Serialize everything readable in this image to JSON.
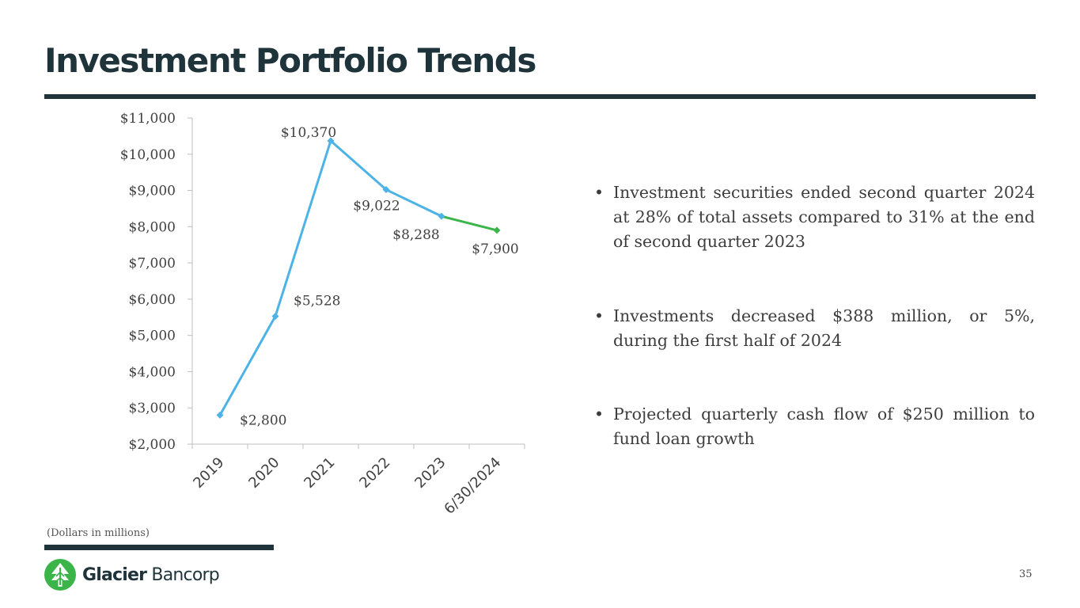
{
  "slide": {
    "title": "Investment Portfolio Trends",
    "note": "(Dollars in millions)",
    "page_number": "35",
    "brand_bold": "Glacier",
    "brand_light": "Bancorp",
    "colors": {
      "dark": "#1f333b",
      "series_blue": "#4db3e6",
      "series_green": "#3cb54a",
      "logo_green": "#3bb54a"
    }
  },
  "bullets": [
    "Investment securities ended second quarter 2024 at 28% of total assets compared to 31% at the end of second quarter 2023",
    "Investments decreased $388 million, or 5%, during the first half of 2024",
    "Projected quarterly cash flow of $250 million to fund loan growth"
  ],
  "chart_data": {
    "type": "line",
    "categories": [
      "2019",
      "2020",
      "2021",
      "2022",
      "2023",
      "6/30/2024"
    ],
    "values": [
      2800,
      5528,
      10370,
      9022,
      8288,
      7900
    ],
    "data_labels": [
      "$2,800",
      "$5,528",
      "$10,370",
      "$9,022",
      "$8,288",
      "$7,900"
    ],
    "segment_colors": [
      "#4db3e6",
      "#4db3e6",
      "#4db3e6",
      "#4db3e6",
      "#3cb54a"
    ],
    "point_colors": [
      "#4db3e6",
      "#4db3e6",
      "#4db3e6",
      "#4db3e6",
      "#4db3e6",
      "#3cb54a"
    ],
    "yticks": [
      2000,
      3000,
      4000,
      5000,
      6000,
      7000,
      8000,
      9000,
      10000,
      11000
    ],
    "ytick_labels": [
      "$2,000",
      "$3,000",
      "$4,000",
      "$5,000",
      "$6,000",
      "$7,000",
      "$8,000",
      "$9,000",
      "$10,000",
      "$11,000"
    ],
    "ylim": [
      2000,
      11000
    ],
    "title": "",
    "xlabel": "",
    "ylabel": "",
    "grid": false,
    "legend": "none"
  }
}
